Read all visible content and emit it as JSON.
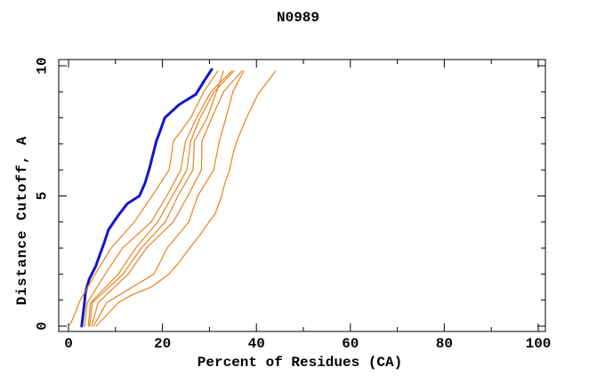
{
  "title": "N0989",
  "axes": {
    "x": {
      "label": "Percent of Residues (CA)",
      "min": 0,
      "max": 100,
      "major_ticks": [
        0,
        20,
        40,
        60,
        80,
        100
      ],
      "minor_ticks": [
        10,
        30,
        50,
        70,
        90
      ]
    },
    "y": {
      "label": "Distance Cutoff, A",
      "min": 0,
      "max": 10,
      "major_ticks": [
        0,
        5,
        10
      ],
      "minor_ticks": [
        1,
        2,
        3,
        4,
        6,
        7,
        8,
        9
      ]
    }
  },
  "colors": {
    "target_curve": "#1414d0",
    "model_curve": "#e8821e",
    "axis": "#000000",
    "background": "#ffffff"
  },
  "chart_data": {
    "type": "line",
    "title": "N0989",
    "xlabel": "Percent of Residues (CA)",
    "ylabel": "Distance Cutoff, A",
    "xlim": [
      -2,
      101.5
    ],
    "ylim": [
      -0.2,
      10.25
    ],
    "grid": false,
    "legend": "none",
    "series": [
      {
        "name": "target-blue",
        "color": "#1414d0",
        "width": 3,
        "points": [
          [
            2.8,
            0
          ],
          [
            3.2,
            0.6
          ],
          [
            3.4,
            0.9
          ],
          [
            3.6,
            1.3
          ],
          [
            4.4,
            1.8
          ],
          [
            5.8,
            2.3
          ],
          [
            6.6,
            2.7
          ],
          [
            7.6,
            3.2
          ],
          [
            8.5,
            3.7
          ],
          [
            10.0,
            4.1
          ],
          [
            10.8,
            4.3
          ],
          [
            12.5,
            4.7
          ],
          [
            15.1,
            5.0
          ],
          [
            16.3,
            5.5
          ],
          [
            17.3,
            6.1
          ],
          [
            18.0,
            6.6
          ],
          [
            18.7,
            7.1
          ],
          [
            19.5,
            7.5
          ],
          [
            20.5,
            8.0
          ],
          [
            23.5,
            8.5
          ],
          [
            27.1,
            8.9
          ],
          [
            29.0,
            9.45
          ],
          [
            30.5,
            9.86
          ]
        ]
      },
      {
        "name": "model-1",
        "color": "#e8821e",
        "width": 1.2,
        "points": [
          [
            0.3,
            0.05
          ],
          [
            1.2,
            0.4
          ],
          [
            2.5,
            1
          ],
          [
            5.7,
            2
          ],
          [
            9.1,
            3
          ],
          [
            14.0,
            4
          ],
          [
            17.8,
            5
          ],
          [
            21.4,
            6
          ],
          [
            21.9,
            6.5
          ],
          [
            22.3,
            7.1
          ],
          [
            24.0,
            7.5
          ],
          [
            26.0,
            8
          ],
          [
            28.8,
            9
          ],
          [
            31.8,
            9.8
          ]
        ]
      },
      {
        "name": "model-2",
        "color": "#e8821e",
        "width": 1.2,
        "points": [
          [
            3.4,
            0
          ],
          [
            4.0,
            0.9
          ],
          [
            7.8,
            2
          ],
          [
            11.5,
            3
          ],
          [
            17.6,
            4
          ],
          [
            20.9,
            5
          ],
          [
            23.9,
            6
          ],
          [
            24.9,
            7.1
          ],
          [
            27.3,
            8
          ],
          [
            30.3,
            9
          ],
          [
            34.8,
            9.8
          ]
        ]
      },
      {
        "name": "model-3",
        "color": "#e8821e",
        "width": 1.2,
        "points": [
          [
            4.2,
            0
          ],
          [
            4.7,
            0.9
          ],
          [
            10.6,
            2
          ],
          [
            14.3,
            3
          ],
          [
            19.0,
            4
          ],
          [
            22.1,
            5
          ],
          [
            25.2,
            6
          ],
          [
            26.0,
            7.1
          ],
          [
            28.0,
            8
          ],
          [
            31.0,
            9
          ],
          [
            35.2,
            9.8
          ]
        ]
      },
      {
        "name": "model-4",
        "color": "#e8821e",
        "width": 1.2,
        "points": [
          [
            4.5,
            0
          ],
          [
            5.1,
            0.9
          ],
          [
            11.6,
            2
          ],
          [
            15.5,
            3
          ],
          [
            20.6,
            4
          ],
          [
            23.3,
            5
          ],
          [
            26.5,
            6
          ],
          [
            26.8,
            7.1
          ],
          [
            29.5,
            8
          ],
          [
            31.5,
            9
          ],
          [
            33.0,
            9.8
          ]
        ]
      },
      {
        "name": "model-5",
        "color": "#e8821e",
        "width": 1.2,
        "points": [
          [
            4.9,
            0
          ],
          [
            6.3,
            0.9
          ],
          [
            12.7,
            2
          ],
          [
            16.6,
            3
          ],
          [
            22.3,
            4
          ],
          [
            25.4,
            5
          ],
          [
            28.3,
            6
          ],
          [
            28.4,
            7.1
          ],
          [
            30.5,
            8
          ],
          [
            33.0,
            9
          ],
          [
            36.9,
            9.8
          ]
        ]
      },
      {
        "name": "model-6",
        "color": "#e8821e",
        "width": 1.2,
        "points": [
          [
            5.3,
            0
          ],
          [
            8.1,
            0.9
          ],
          [
            18.2,
            2
          ],
          [
            21.0,
            3
          ],
          [
            25.6,
            4
          ],
          [
            27.5,
            5
          ],
          [
            30.9,
            6
          ],
          [
            32.1,
            7.1
          ],
          [
            33.5,
            8
          ],
          [
            35.0,
            9
          ],
          [
            37.3,
            9.8
          ]
        ]
      },
      {
        "name": "model-7",
        "color": "#e8821e",
        "width": 1.2,
        "points": [
          [
            5.9,
            0
          ],
          [
            8.5,
            0.5
          ],
          [
            10.6,
            0.9
          ],
          [
            13.5,
            1.2
          ],
          [
            17.6,
            1.5
          ],
          [
            21.4,
            2
          ],
          [
            23.3,
            2.4
          ],
          [
            25.8,
            3
          ],
          [
            28.0,
            3.5
          ],
          [
            29.9,
            4
          ],
          [
            31.2,
            4.3
          ],
          [
            32.6,
            5
          ],
          [
            33.3,
            5.5
          ],
          [
            34.3,
            6
          ],
          [
            35.0,
            6.6
          ],
          [
            35.8,
            7.1
          ],
          [
            37.9,
            8
          ],
          [
            40.3,
            8.9
          ],
          [
            44.1,
            9.8
          ]
        ]
      }
    ]
  }
}
